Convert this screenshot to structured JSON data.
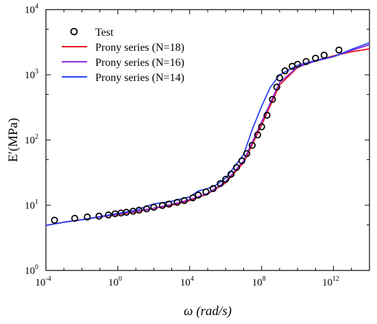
{
  "chart_data": {
    "type": "line",
    "x_scale": "log",
    "y_scale": "log",
    "xlabel": "ω (rad/s)",
    "ylabel": "E′(MPa)",
    "xlim": [
      0.0001,
      100000000000000.0
    ],
    "ylim": [
      1,
      10000
    ],
    "grid": false,
    "legend_position": "top-left",
    "x_tick_exponents": [
      "-4",
      "0",
      "4",
      "8",
      "12"
    ],
    "y_tick_exponents": [
      "0",
      "1",
      "2",
      "3",
      "4"
    ],
    "tick_base": "10",
    "series": [
      {
        "name": "Test",
        "kind": "scatter",
        "marker": "open-circle",
        "color": "#000000",
        "x": [
          0.0003,
          0.004,
          0.02,
          0.09,
          0.3,
          0.7,
          1.5,
          3,
          7,
          15,
          40,
          100,
          300,
          700,
          2000,
          5000,
          15000,
          30000,
          80000,
          200000,
          500000,
          1000000,
          2000000,
          4000000,
          8000000,
          15000000,
          30000000,
          60000000,
          100000000,
          200000000,
          400000000,
          700000000,
          1000000000,
          2000000000,
          5000000000,
          10000000000,
          30000000000,
          100000000000,
          300000000000,
          2000000000000
        ],
        "y": [
          5.9,
          6.3,
          6.6,
          6.8,
          7.1,
          7.4,
          7.6,
          7.8,
          8.1,
          8.4,
          8.8,
          9.3,
          9.9,
          10.4,
          11.1,
          11.8,
          13.0,
          14.3,
          16.0,
          18.0,
          21.5,
          25.0,
          30.0,
          38.0,
          48.0,
          62.0,
          83.0,
          120.0,
          160.0,
          240.0,
          420.0,
          650.0,
          900.0,
          1150.0,
          1350.0,
          1450.0,
          1600.0,
          1800.0,
          2000.0,
          2400.0
        ]
      },
      {
        "name": "Prony series (N=18)",
        "kind": "line",
        "color": "#e8121b",
        "x": [
          0.0001,
          0.001,
          0.01,
          0.1,
          1,
          10,
          100,
          1000,
          10000,
          100000,
          1000000,
          10000000,
          100000000,
          1000000000,
          10000000000,
          100000000000,
          1000000000000,
          10000000000000,
          100000000000000
        ],
        "y": [
          4.9,
          5.5,
          6.0,
          6.6,
          7.2,
          7.9,
          8.9,
          10.0,
          11.8,
          14.9,
          22.0,
          45.0,
          170.0,
          700.0,
          1300.0,
          1650.0,
          1950.0,
          2250.0,
          2500.0
        ]
      },
      {
        "name": "Prony series (N=16)",
        "kind": "line",
        "color": "#8a2be2",
        "x": [
          0.0001,
          0.001,
          0.01,
          0.1,
          1,
          10,
          100,
          1000,
          10000,
          100000,
          1000000,
          10000000,
          100000000,
          1000000000,
          10000000000,
          100000000000,
          1000000000000,
          10000000000000,
          100000000000000
        ],
        "y": [
          4.9,
          5.5,
          6.0,
          6.6,
          7.3,
          8.1,
          9.0,
          10.3,
          12.2,
          15.2,
          23.0,
          48.0,
          190.0,
          760.0,
          1320.0,
          1620.0,
          1900.0,
          2350.0,
          2900.0
        ]
      },
      {
        "name": "Prony series (N=14)",
        "kind": "line",
        "color": "#2b3ff0",
        "x": [
          0.0001,
          0.001,
          0.01,
          0.1,
          1,
          10,
          100,
          1000,
          10000,
          30000,
          100000,
          300000,
          1000000,
          10000000,
          30000000,
          100000000,
          300000000,
          1000000000,
          10000000000,
          100000000000,
          1000000000000,
          10000000000000,
          100000000000000
        ],
        "y": [
          4.9,
          5.5,
          6.0,
          6.7,
          7.5,
          8.4,
          10.5,
          11.5,
          13.5,
          16.5,
          18.0,
          20.5,
          26.0,
          60.0,
          145.0,
          330.0,
          640.0,
          1000.0,
          1400.0,
          1650.0,
          1900.0,
          2450.0,
          3100.0
        ]
      }
    ]
  }
}
